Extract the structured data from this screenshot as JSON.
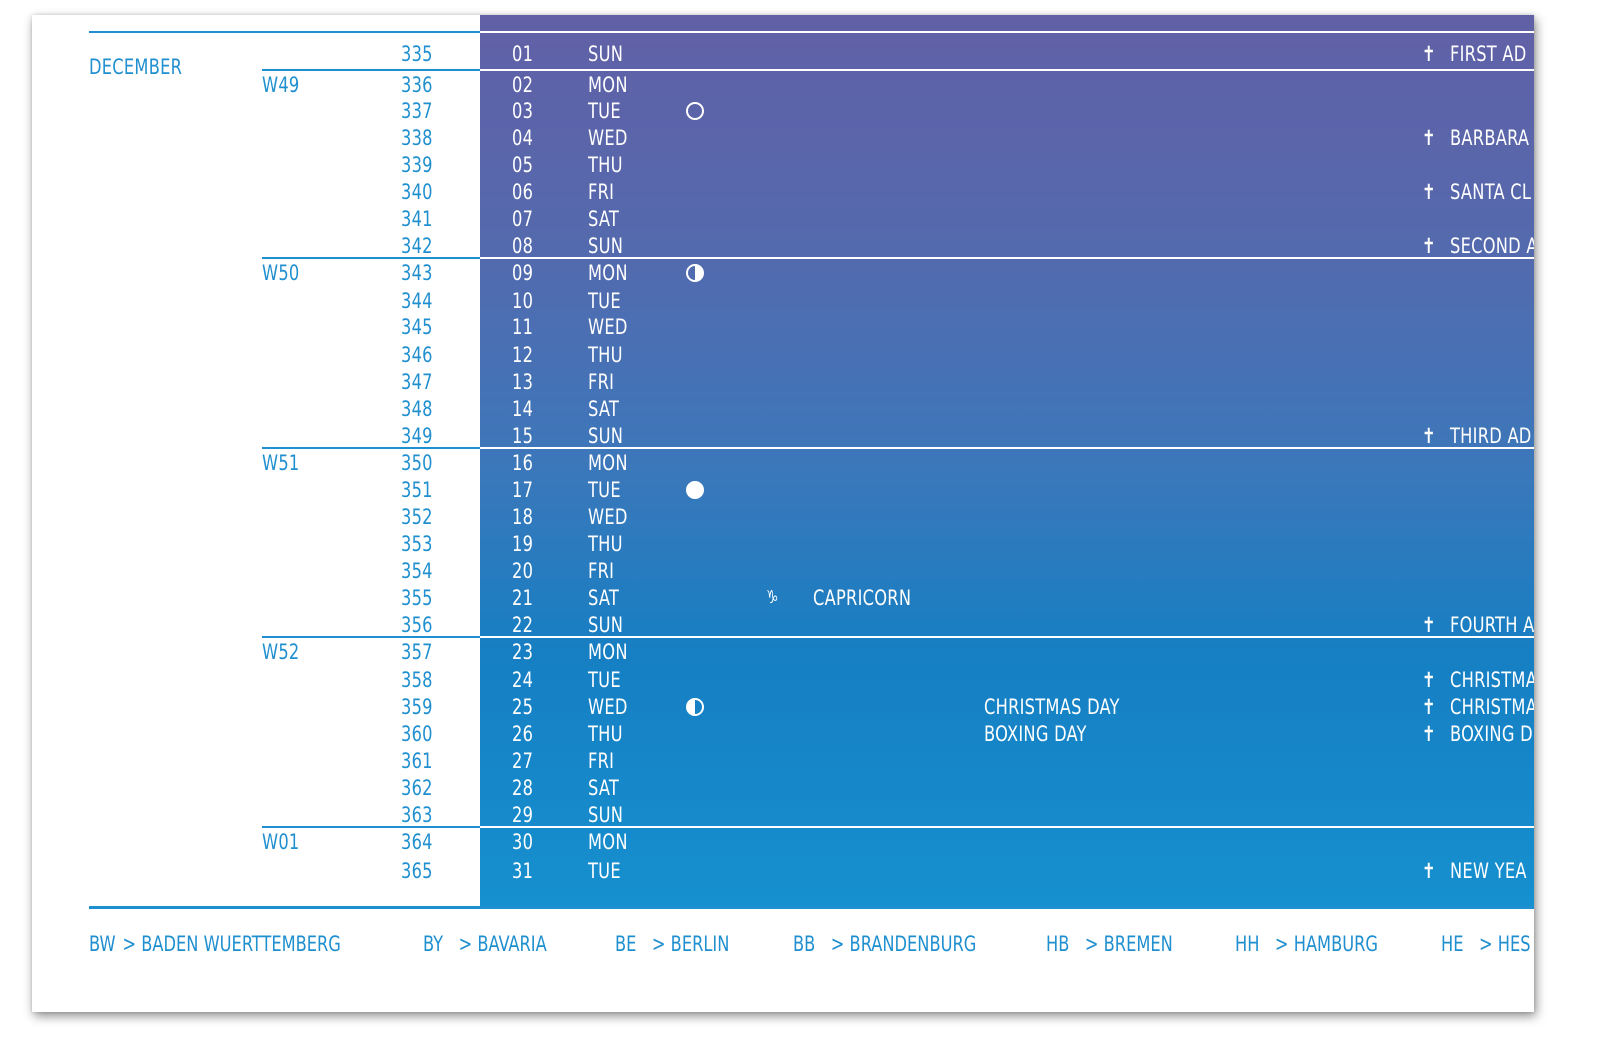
{
  "calendar": {
    "month": "DECEMBER",
    "colors": {
      "accent": "#1f8fcf",
      "gradient_top": "#6160a6",
      "gradient_bottom": "#1690cf",
      "text_on_panel": "#ffffff"
    },
    "weeks": [
      {
        "label": "W49",
        "start_day": "02"
      },
      {
        "label": "W50",
        "start_day": "09"
      },
      {
        "label": "W51",
        "start_day": "16"
      },
      {
        "label": "W52",
        "start_day": "23"
      },
      {
        "label": "W01",
        "start_day": "30"
      }
    ],
    "days": [
      {
        "doy": "335",
        "day": "01",
        "dow": "SUN",
        "holiday": "FIRST AD"
      },
      {
        "doy": "336",
        "day": "02",
        "dow": "MON"
      },
      {
        "doy": "337",
        "day": "03",
        "dow": "TUE",
        "moon": "new-moon"
      },
      {
        "doy": "338",
        "day": "04",
        "dow": "WED",
        "holiday": "BARBARA"
      },
      {
        "doy": "339",
        "day": "05",
        "dow": "THU"
      },
      {
        "doy": "340",
        "day": "06",
        "dow": "FRI",
        "holiday": "SANTA CL"
      },
      {
        "doy": "341",
        "day": "07",
        "dow": "SAT"
      },
      {
        "doy": "342",
        "day": "08",
        "dow": "SUN",
        "holiday": "SECOND A"
      },
      {
        "doy": "343",
        "day": "09",
        "dow": "MON",
        "moon": "first-quarter"
      },
      {
        "doy": "344",
        "day": "10",
        "dow": "TUE"
      },
      {
        "doy": "345",
        "day": "11",
        "dow": "WED"
      },
      {
        "doy": "346",
        "day": "12",
        "dow": "THU"
      },
      {
        "doy": "347",
        "day": "13",
        "dow": "FRI"
      },
      {
        "doy": "348",
        "day": "14",
        "dow": "SAT"
      },
      {
        "doy": "349",
        "day": "15",
        "dow": "SUN",
        "holiday": "THIRD AD"
      },
      {
        "doy": "350",
        "day": "16",
        "dow": "MON"
      },
      {
        "doy": "351",
        "day": "17",
        "dow": "TUE",
        "moon": "full-moon"
      },
      {
        "doy": "352",
        "day": "18",
        "dow": "WED"
      },
      {
        "doy": "353",
        "day": "19",
        "dow": "THU"
      },
      {
        "doy": "354",
        "day": "20",
        "dow": "FRI"
      },
      {
        "doy": "355",
        "day": "21",
        "dow": "SAT",
        "zodiac_glyph": "♑",
        "zodiac": "CAPRICORN"
      },
      {
        "doy": "356",
        "day": "22",
        "dow": "SUN",
        "holiday": "FOURTH A"
      },
      {
        "doy": "357",
        "day": "23",
        "dow": "MON"
      },
      {
        "doy": "358",
        "day": "24",
        "dow": "TUE",
        "holiday": "CHRISTMA"
      },
      {
        "doy": "359",
        "day": "25",
        "dow": "WED",
        "moon": "last-quarter",
        "event": "CHRISTMAS DAY",
        "holiday": "CHRISTMA"
      },
      {
        "doy": "360",
        "day": "26",
        "dow": "THU",
        "event": "BOXING DAY",
        "holiday": "BOXING D"
      },
      {
        "doy": "361",
        "day": "27",
        "dow": "FRI"
      },
      {
        "doy": "362",
        "day": "28",
        "dow": "SAT"
      },
      {
        "doy": "363",
        "day": "29",
        "dow": "SUN"
      },
      {
        "doy": "364",
        "day": "30",
        "dow": "MON"
      },
      {
        "doy": "365",
        "day": "31",
        "dow": "TUE",
        "holiday": "NEW YEA"
      }
    ],
    "cross_glyph": "✝"
  },
  "legend": [
    {
      "code": "BW",
      "arrow": ">",
      "name": "BADEN WUERTTEMBERG"
    },
    {
      "code": "BY",
      "arrow": ">",
      "name": "BAVARIA"
    },
    {
      "code": "BE",
      "arrow": ">",
      "name": "BERLIN"
    },
    {
      "code": "BB",
      "arrow": ">",
      "name": "BRANDENBURG"
    },
    {
      "code": "HB",
      "arrow": ">",
      "name": "BREMEN"
    },
    {
      "code": "HH",
      "arrow": ">",
      "name": "HAMBURG"
    },
    {
      "code": "HE",
      "arrow": ">",
      "name": "HES"
    }
  ]
}
